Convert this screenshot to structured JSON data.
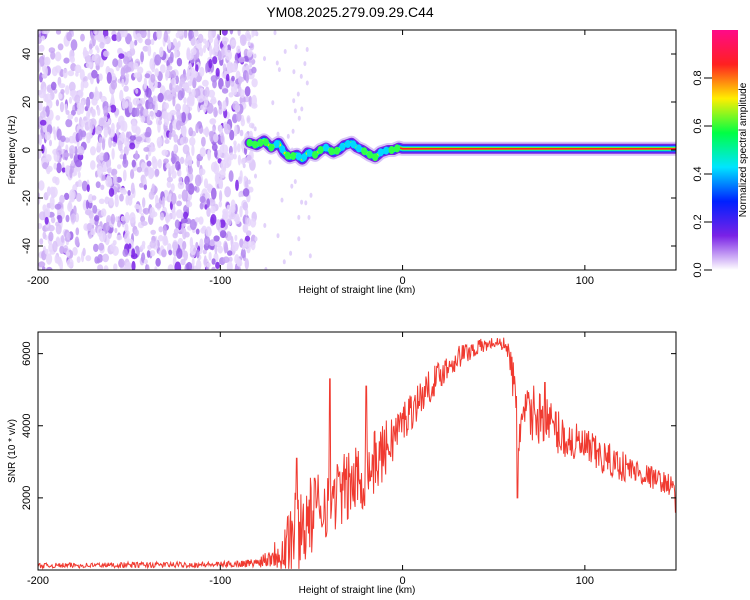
{
  "title": "YM08.2025.279.09.29.C44",
  "chart_data": [
    {
      "type": "heatmap",
      "title": "",
      "xlabel": "Height of straight line (km)",
      "ylabel": "Frequency (Hz)",
      "xlim": [
        -200,
        150
      ],
      "ylim": [
        -50,
        50
      ],
      "xticks": [
        -200,
        -100,
        0,
        100
      ],
      "yticks": [
        -40,
        -20,
        0,
        20,
        40
      ],
      "noise_region_x": [
        -200,
        -85
      ],
      "signal_ridge": {
        "x": [
          -84,
          -80,
          -76,
          -72,
          -68,
          -65,
          -62,
          -58,
          -55,
          -52,
          -48,
          -45,
          -42,
          -38,
          -35,
          -32,
          -28,
          -25,
          -22,
          -18,
          -15,
          -12,
          -8,
          -5,
          -2,
          0,
          20,
          50,
          80,
          110,
          150
        ],
        "freq": [
          3,
          2,
          4,
          1,
          3,
          -1,
          -3,
          -2,
          -4,
          -1,
          -2,
          0,
          1,
          -1,
          0,
          2,
          3,
          1,
          0,
          -2,
          -3,
          -1,
          0,
          0,
          1,
          0.5,
          0.5,
          0.5,
          0.5,
          0.5,
          0.5
        ]
      },
      "colorbar": {
        "label": "Normalized spectral amplitude",
        "range": [
          0,
          1
        ],
        "ticks": [
          "0.0",
          "0.2",
          "0.4",
          "0.6",
          "0.8"
        ],
        "colors": [
          "#ffffff",
          "#7a22e6",
          "#0020ff",
          "#00e5ff",
          "#00ff44",
          "#ffee00",
          "#ff2020",
          "#ff0a88"
        ]
      }
    },
    {
      "type": "line",
      "title": "",
      "xlabel": "Height of straight line (km)",
      "ylabel": "SNR (10 * v/v)",
      "xlim": [
        -200,
        150
      ],
      "ylim": [
        0,
        6600
      ],
      "xticks": [
        -200,
        -100,
        0,
        100
      ],
      "yticks": [
        2000,
        4000,
        6000
      ],
      "color": "#f03a30",
      "envelope": {
        "x": [
          -200,
          -150,
          -100,
          -80,
          -70,
          -62,
          -56,
          -50,
          -45,
          -40,
          -30,
          -20,
          -10,
          0,
          10,
          20,
          30,
          40,
          50,
          57,
          60,
          63,
          66,
          70,
          80,
          90,
          100,
          110,
          120,
          130,
          140,
          150
        ],
        "mean": [
          120,
          140,
          150,
          200,
          450,
          900,
          1200,
          1500,
          1800,
          2000,
          2300,
          2700,
          3300,
          4100,
          4800,
          5400,
          5900,
          6150,
          6300,
          6250,
          5600,
          3800,
          4200,
          4400,
          4100,
          3600,
          3400,
          3100,
          2900,
          2700,
          2500,
          2300
        ],
        "amplitude": [
          70,
          80,
          80,
          120,
          400,
          1300,
          1200,
          1100,
          1100,
          1000,
          1000,
          1000,
          800,
          600,
          500,
          400,
          350,
          250,
          150,
          200,
          500,
          1200,
          600,
          800,
          700,
          600,
          550,
          500,
          450,
          350,
          300,
          300
        ]
      },
      "spikes": [
        {
          "x": -58,
          "y": 3100
        },
        {
          "x": -40,
          "y": 5300
        },
        {
          "x": -20,
          "y": 5100
        },
        {
          "x": 63,
          "y": 2000
        },
        {
          "x": 78,
          "y": 5200
        },
        {
          "x": 150,
          "y": 1600
        }
      ]
    }
  ]
}
